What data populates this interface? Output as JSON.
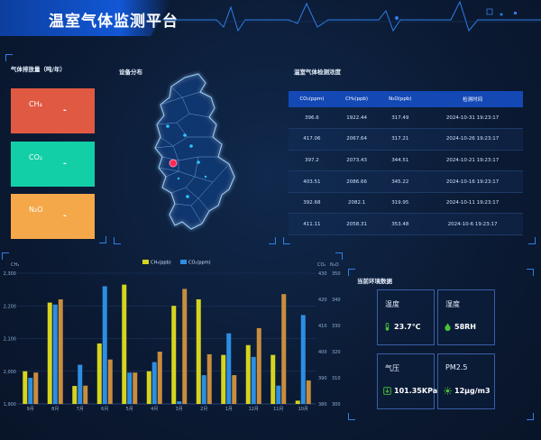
{
  "header": {
    "title": "温室气体监测平台"
  },
  "colors": {
    "ch4": "#e05a43",
    "co2": "#13cfa8",
    "n2o": "#f5a84a",
    "bar_yellow": "#d6d41e",
    "bar_blue": "#2b8fe3",
    "bar_orange": "#c98d3e",
    "icon_green": "#49c23a"
  },
  "emissions_panel": {
    "title": "气体排放量（吨/年）",
    "cards": [
      {
        "name": "CH₄",
        "value": "-"
      },
      {
        "name": "CO₂",
        "value": "-"
      },
      {
        "name": "N₂O",
        "value": "-"
      }
    ]
  },
  "map_panel": {
    "title": "设备分布"
  },
  "table_panel": {
    "title": "温室气体检测浓度",
    "headers": [
      "CO₂(ppm)",
      "CH₄(ppb)",
      "N₂O(ppb)",
      "检测时间"
    ],
    "rows": [
      [
        "396.6",
        "1922.44",
        "317.49",
        "2024-10-31 19:23:17"
      ],
      [
        "417.06",
        "2067.64",
        "317.21",
        "2024-10-26 19:23:17"
      ],
      [
        "397.2",
        "2073.43",
        "344.51",
        "2024-10-21 19:23:17"
      ],
      [
        "403.51",
        "2086.66",
        "345.22",
        "2024-10-16 19:23:17"
      ],
      [
        "392.68",
        "2082.1",
        "319.95",
        "2024-10-11 19:23:17"
      ],
      [
        "411.11",
        "2058.31",
        "353.48",
        "2024-10-6 19:23:17"
      ]
    ]
  },
  "chart_data": {
    "type": "bar",
    "categories": [
      "9月",
      "8月",
      "7月",
      "6月",
      "5月",
      "4月",
      "3月",
      "2月",
      "1月",
      "12月",
      "11月",
      "10月"
    ],
    "legend": [
      "CH₄(ppb)",
      "CO₂(ppm)"
    ],
    "left_axis": {
      "label": "CH₄",
      "ticks": [
        1900,
        2000,
        2100,
        2200,
        2300
      ],
      "tick_labels": [
        "1,900",
        "2,000",
        "2,100",
        "2,200",
        "2,300"
      ],
      "range": [
        1900,
        2300
      ]
    },
    "right_axis": {
      "labels": [
        "CO₂",
        "N₂O"
      ],
      "co2_ticks": [
        380,
        390,
        400,
        410,
        420,
        430
      ],
      "n2o_ticks": [
        300,
        310,
        320,
        330,
        340,
        350
      ],
      "co2_range": [
        380,
        430
      ],
      "n2o_range": [
        300,
        350
      ]
    },
    "series": [
      {
        "name": "CH₄(ppb)",
        "axis": "left",
        "values": [
          2000,
          2210,
          1955,
          2085,
          2265,
          2000,
          2200,
          2220,
          2050,
          2080,
          2050,
          1910
        ]
      },
      {
        "name": "CO₂(ppm)",
        "axis": "co2",
        "values": [
          390,
          418,
          395,
          425,
          392,
          396,
          381,
          391,
          407,
          398,
          387,
          414
        ]
      },
      {
        "name": "N₂O",
        "axis": "n2o",
        "values": [
          312,
          340,
          307,
          317,
          312,
          320,
          344,
          319,
          311,
          329,
          342,
          309
        ]
      }
    ]
  },
  "env_panel": {
    "title": "当前环境数据",
    "cards": [
      {
        "label": "温度",
        "value": "23.7℃",
        "icon": "thermometer-icon"
      },
      {
        "label": "湿度",
        "value": "58RH",
        "icon": "droplet-icon"
      },
      {
        "label": "气压",
        "value": "101.35KPa",
        "icon": "gauge-icon"
      },
      {
        "label": "PM2.5",
        "value": "12μg/m3",
        "icon": "sun-icon"
      }
    ]
  }
}
